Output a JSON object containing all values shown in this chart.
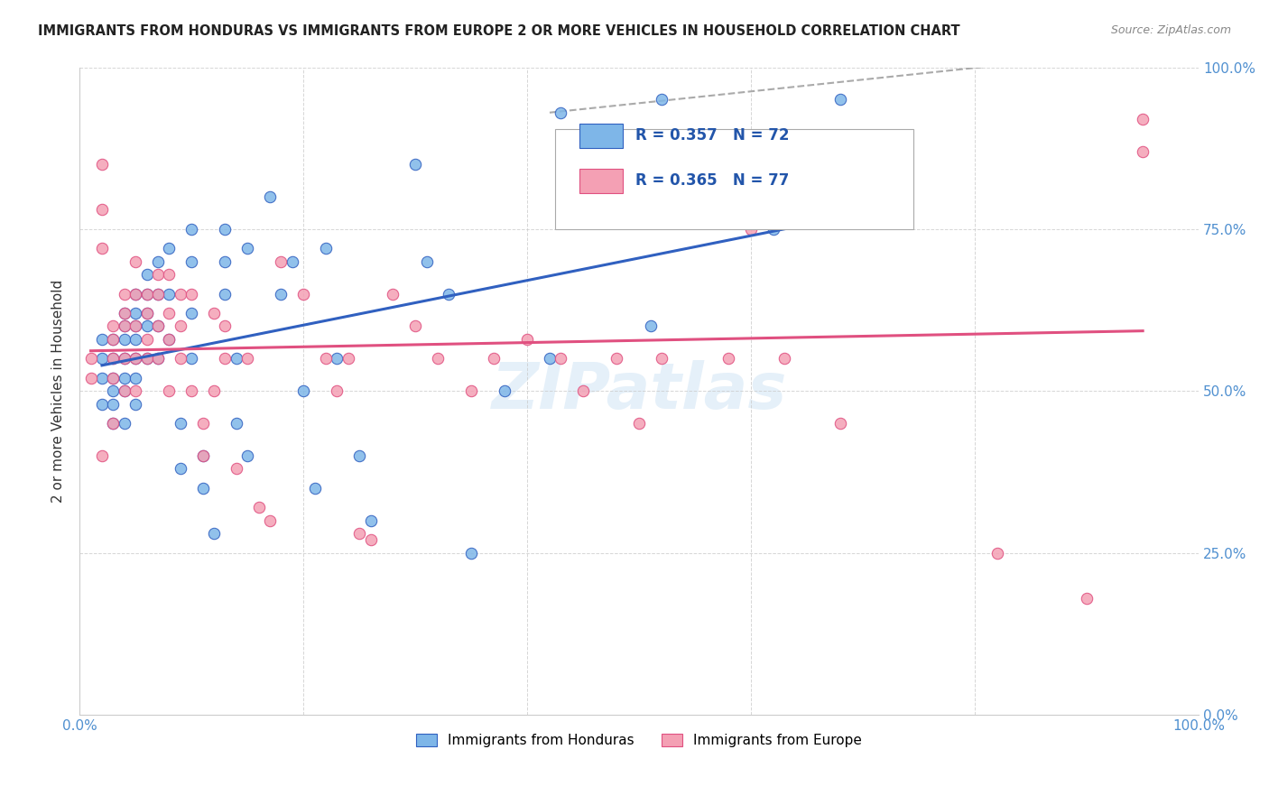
{
  "title": "IMMIGRANTS FROM HONDURAS VS IMMIGRANTS FROM EUROPE 2 OR MORE VEHICLES IN HOUSEHOLD CORRELATION CHART",
  "source": "Source: ZipAtlas.com",
  "xlabel": "",
  "ylabel": "2 or more Vehicles in Household",
  "xlim": [
    0,
    1
  ],
  "ylim": [
    0,
    1
  ],
  "watermark": "ZIPatlas",
  "legend_blue_label": "Immigrants from Honduras",
  "legend_pink_label": "Immigrants from Europe",
  "R_blue": 0.357,
  "N_blue": 72,
  "R_pink": 0.365,
  "N_pink": 77,
  "blue_color": "#7EB6E8",
  "pink_color": "#F4A0B4",
  "trend_blue": "#3060C0",
  "trend_pink": "#E05080",
  "trend_dashed_color": "#AAAAAA",
  "blue_x": [
    0.02,
    0.02,
    0.02,
    0.02,
    0.03,
    0.03,
    0.03,
    0.03,
    0.03,
    0.03,
    0.04,
    0.04,
    0.04,
    0.04,
    0.04,
    0.04,
    0.04,
    0.05,
    0.05,
    0.05,
    0.05,
    0.05,
    0.05,
    0.05,
    0.06,
    0.06,
    0.06,
    0.06,
    0.06,
    0.07,
    0.07,
    0.07,
    0.07,
    0.08,
    0.08,
    0.08,
    0.09,
    0.09,
    0.1,
    0.1,
    0.1,
    0.1,
    0.11,
    0.11,
    0.12,
    0.13,
    0.13,
    0.13,
    0.14,
    0.14,
    0.15,
    0.15,
    0.17,
    0.18,
    0.19,
    0.2,
    0.21,
    0.22,
    0.23,
    0.25,
    0.26,
    0.3,
    0.31,
    0.33,
    0.35,
    0.38,
    0.42,
    0.43,
    0.51,
    0.52,
    0.62,
    0.68
  ],
  "blue_y": [
    0.58,
    0.55,
    0.52,
    0.48,
    0.58,
    0.55,
    0.52,
    0.5,
    0.48,
    0.45,
    0.62,
    0.6,
    0.58,
    0.55,
    0.52,
    0.5,
    0.45,
    0.65,
    0.62,
    0.6,
    0.58,
    0.55,
    0.52,
    0.48,
    0.68,
    0.65,
    0.62,
    0.6,
    0.55,
    0.7,
    0.65,
    0.6,
    0.55,
    0.72,
    0.65,
    0.58,
    0.45,
    0.38,
    0.75,
    0.7,
    0.62,
    0.55,
    0.4,
    0.35,
    0.28,
    0.75,
    0.7,
    0.65,
    0.55,
    0.45,
    0.72,
    0.4,
    0.8,
    0.65,
    0.7,
    0.5,
    0.35,
    0.72,
    0.55,
    0.4,
    0.3,
    0.85,
    0.7,
    0.65,
    0.25,
    0.5,
    0.55,
    0.93,
    0.6,
    0.95,
    0.75,
    0.95
  ],
  "pink_x": [
    0.01,
    0.01,
    0.02,
    0.02,
    0.02,
    0.02,
    0.03,
    0.03,
    0.03,
    0.03,
    0.03,
    0.04,
    0.04,
    0.04,
    0.04,
    0.04,
    0.05,
    0.05,
    0.05,
    0.05,
    0.05,
    0.06,
    0.06,
    0.06,
    0.06,
    0.07,
    0.07,
    0.07,
    0.07,
    0.08,
    0.08,
    0.08,
    0.08,
    0.09,
    0.09,
    0.09,
    0.1,
    0.1,
    0.11,
    0.11,
    0.12,
    0.12,
    0.13,
    0.13,
    0.14,
    0.15,
    0.16,
    0.17,
    0.18,
    0.2,
    0.22,
    0.23,
    0.24,
    0.25,
    0.26,
    0.28,
    0.3,
    0.32,
    0.35,
    0.37,
    0.4,
    0.43,
    0.45,
    0.48,
    0.5,
    0.52,
    0.55,
    0.58,
    0.6,
    0.63,
    0.68,
    0.7,
    0.72,
    0.82,
    0.9,
    0.95,
    0.95
  ],
  "pink_y": [
    0.55,
    0.52,
    0.85,
    0.78,
    0.72,
    0.4,
    0.6,
    0.58,
    0.55,
    0.52,
    0.45,
    0.65,
    0.62,
    0.6,
    0.55,
    0.5,
    0.7,
    0.65,
    0.6,
    0.55,
    0.5,
    0.65,
    0.62,
    0.58,
    0.55,
    0.68,
    0.65,
    0.6,
    0.55,
    0.68,
    0.62,
    0.58,
    0.5,
    0.65,
    0.6,
    0.55,
    0.65,
    0.5,
    0.45,
    0.4,
    0.62,
    0.5,
    0.6,
    0.55,
    0.38,
    0.55,
    0.32,
    0.3,
    0.7,
    0.65,
    0.55,
    0.5,
    0.55,
    0.28,
    0.27,
    0.65,
    0.6,
    0.55,
    0.5,
    0.55,
    0.58,
    0.55,
    0.5,
    0.55,
    0.45,
    0.55,
    0.8,
    0.55,
    0.75,
    0.55,
    0.45,
    0.87,
    0.78,
    0.25,
    0.18,
    0.92,
    0.87
  ]
}
